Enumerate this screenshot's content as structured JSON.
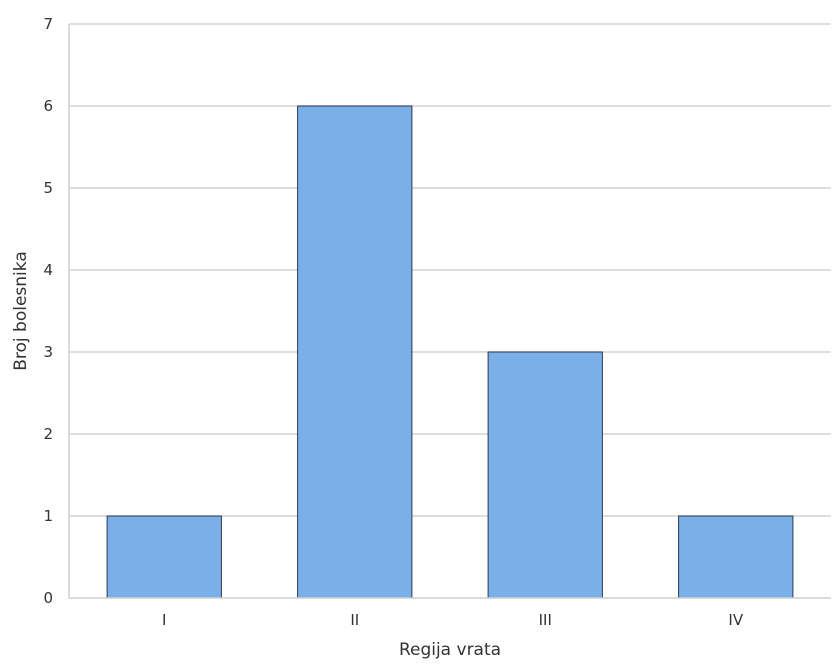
{
  "chart_data": {
    "type": "bar",
    "categories": [
      "I",
      "II",
      "III",
      "IV"
    ],
    "values": [
      1,
      6,
      3,
      1
    ],
    "title": "",
    "xlabel": "Regija vrata",
    "ylabel": "Broj bolesnika",
    "ylim": [
      0,
      7
    ],
    "yticks": [
      0,
      1,
      2,
      3,
      4,
      5,
      6,
      7
    ],
    "grid": "horizontal",
    "legend": "none",
    "bar_color": "#7aafea",
    "bar_edge_color": "#2a3a50",
    "grid_color": "#d4d4d4"
  }
}
